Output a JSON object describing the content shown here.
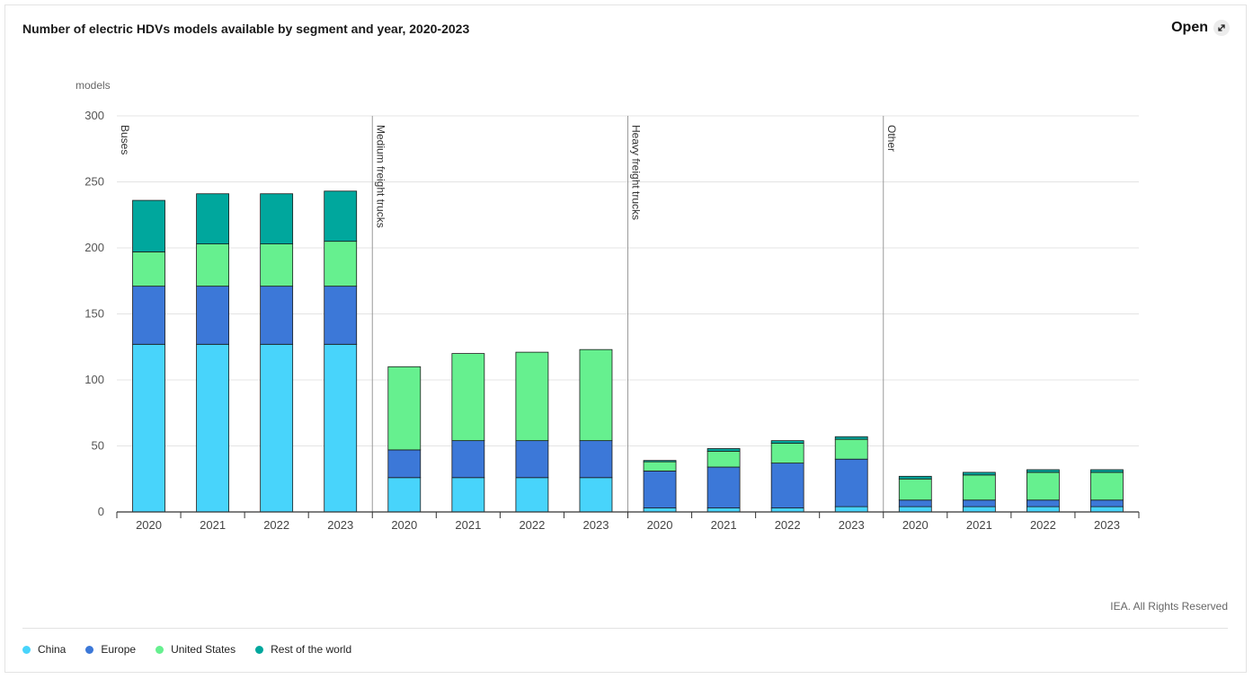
{
  "header": {
    "title": "Number of electric HDVs models available by segment and year, 2020-2023",
    "open_label": "Open"
  },
  "footer": {
    "credit": "IEA. All Rights Reserved"
  },
  "colors": {
    "China": "#48d4fb",
    "Europe": "#3c78d8",
    "United States": "#66f08f",
    "Rest of the world": "#00a79d"
  },
  "chart_data": {
    "type": "bar",
    "stacked": true,
    "title": "Number of electric HDVs models available by segment and year, 2020-2023",
    "ylabel": "models",
    "ylim": [
      0,
      300
    ],
    "yticks": [
      0,
      50,
      100,
      150,
      200,
      250,
      300
    ],
    "grid": true,
    "legend_position": "bottom-left",
    "groups": [
      {
        "segment": "Buses",
        "categories": [
          "2020",
          "2021",
          "2022",
          "2023"
        ],
        "series": [
          {
            "name": "China",
            "values": [
              127,
              127,
              127,
              127
            ]
          },
          {
            "name": "Europe",
            "values": [
              44,
              44,
              44,
              44
            ]
          },
          {
            "name": "United States",
            "values": [
              26,
              32,
              32,
              34
            ]
          },
          {
            "name": "Rest of the world",
            "values": [
              39,
              38,
              38,
              38
            ]
          }
        ]
      },
      {
        "segment": "Medium freight trucks",
        "categories": [
          "2020",
          "2021",
          "2022",
          "2023"
        ],
        "series": [
          {
            "name": "China",
            "values": [
              26,
              26,
              26,
              26
            ]
          },
          {
            "name": "Europe",
            "values": [
              21,
              28,
              28,
              28
            ]
          },
          {
            "name": "United States",
            "values": [
              63,
              66,
              67,
              69
            ]
          },
          {
            "name": "Rest of the world",
            "values": [
              0,
              0,
              0,
              0
            ]
          }
        ]
      },
      {
        "segment": "Heavy freight trucks",
        "categories": [
          "2020",
          "2021",
          "2022",
          "2023"
        ],
        "series": [
          {
            "name": "China",
            "values": [
              3,
              3,
              3,
              4
            ]
          },
          {
            "name": "Europe",
            "values": [
              28,
              31,
              34,
              36
            ]
          },
          {
            "name": "United States",
            "values": [
              7,
              12,
              15,
              15
            ]
          },
          {
            "name": "Rest of the world",
            "values": [
              1,
              2,
              2,
              2
            ]
          }
        ]
      },
      {
        "segment": "Other",
        "categories": [
          "2020",
          "2021",
          "2022",
          "2023"
        ],
        "series": [
          {
            "name": "China",
            "values": [
              4,
              4,
              4,
              4
            ]
          },
          {
            "name": "Europe",
            "values": [
              5,
              5,
              5,
              5
            ]
          },
          {
            "name": "United States",
            "values": [
              16,
              19,
              21,
              21
            ]
          },
          {
            "name": "Rest of the world",
            "values": [
              2,
              2,
              2,
              2
            ]
          }
        ]
      }
    ]
  }
}
